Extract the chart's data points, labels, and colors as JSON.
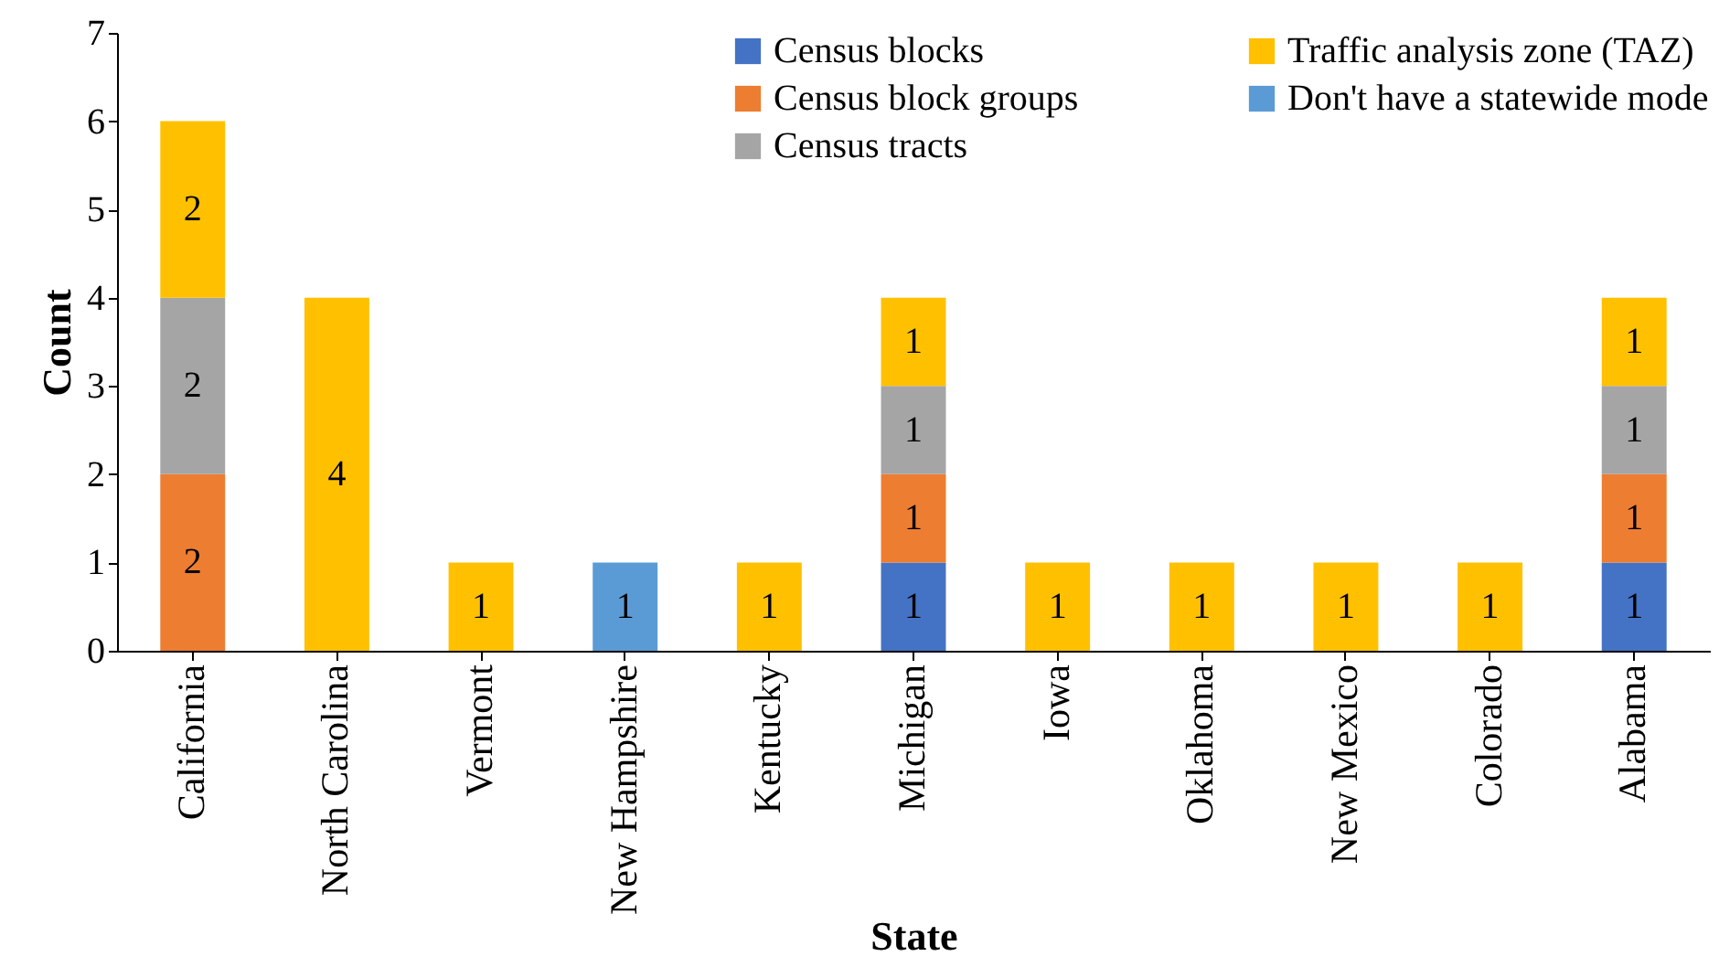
{
  "chart_data": {
    "type": "bar",
    "stacked": true,
    "xlabel": "State",
    "ylabel": "Count",
    "categories": [
      "California",
      "North Carolina",
      "Vermont",
      "New Hampshire",
      "Kentucky",
      "Michigan",
      "Iowa",
      "Oklahoma",
      "New Mexico",
      "Colorado",
      "Alabama"
    ],
    "series": [
      {
        "name": "Census blocks",
        "color": "#4472c4",
        "values": [
          null,
          null,
          null,
          null,
          null,
          1,
          null,
          null,
          null,
          null,
          1
        ]
      },
      {
        "name": "Census block groups",
        "color": "#ed7d31",
        "values": [
          2,
          null,
          null,
          null,
          null,
          1,
          null,
          null,
          null,
          null,
          1
        ]
      },
      {
        "name": "Census tracts",
        "color": "#a5a5a5",
        "values": [
          2,
          null,
          null,
          null,
          null,
          1,
          null,
          null,
          null,
          null,
          1
        ]
      },
      {
        "name": "Traffic analysis zone (TAZ)",
        "color": "#ffc000",
        "values": [
          2,
          4,
          1,
          null,
          1,
          1,
          1,
          1,
          1,
          1,
          1
        ]
      },
      {
        "name": "Don't have a statewide mode",
        "color": "#5b9bd5",
        "values": [
          null,
          null,
          null,
          1,
          null,
          null,
          null,
          null,
          null,
          null,
          null
        ]
      }
    ],
    "ylim": [
      0,
      7
    ],
    "yticks": [
      0,
      1,
      2,
      3,
      4,
      5,
      6,
      7
    ],
    "data_labels": true,
    "legend": "top right"
  }
}
